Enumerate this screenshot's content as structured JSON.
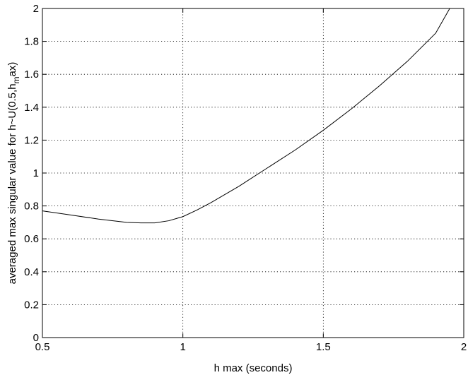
{
  "chart_data": {
    "type": "line",
    "title": "",
    "xlabel": "h  max (seconds)",
    "ylabel_main": "averaged max singular value for h~U(0.5,h",
    "ylabel_sub": "m",
    "ylabel_end": "ax)",
    "xlim": [
      0.5,
      2
    ],
    "ylim": [
      0,
      2
    ],
    "grid": true,
    "x_ticks": [
      0.5,
      1,
      1.5,
      2
    ],
    "x_tick_labels": [
      "0.5",
      "1",
      "1.5",
      "2"
    ],
    "y_ticks": [
      0,
      0.2,
      0.4,
      0.6,
      0.8,
      1,
      1.2,
      1.4,
      1.6,
      1.8,
      2
    ],
    "y_tick_labels": [
      "0",
      "0.2",
      "0.4",
      "0.6",
      "0.8",
      "1",
      "1.2",
      "1.4",
      "1.6",
      "1.8",
      "2"
    ],
    "series": [
      {
        "x": [
          0.5,
          0.6,
          0.7,
          0.8,
          0.85,
          0.9,
          0.95,
          1.0,
          1.05,
          1.1,
          1.2,
          1.3,
          1.4,
          1.5,
          1.6,
          1.7,
          1.8,
          1.9,
          1.95
        ],
        "y": [
          0.77,
          0.745,
          0.72,
          0.7,
          0.697,
          0.697,
          0.71,
          0.735,
          0.775,
          0.82,
          0.92,
          1.03,
          1.14,
          1.26,
          1.39,
          1.53,
          1.68,
          1.85,
          2.0
        ]
      }
    ]
  }
}
